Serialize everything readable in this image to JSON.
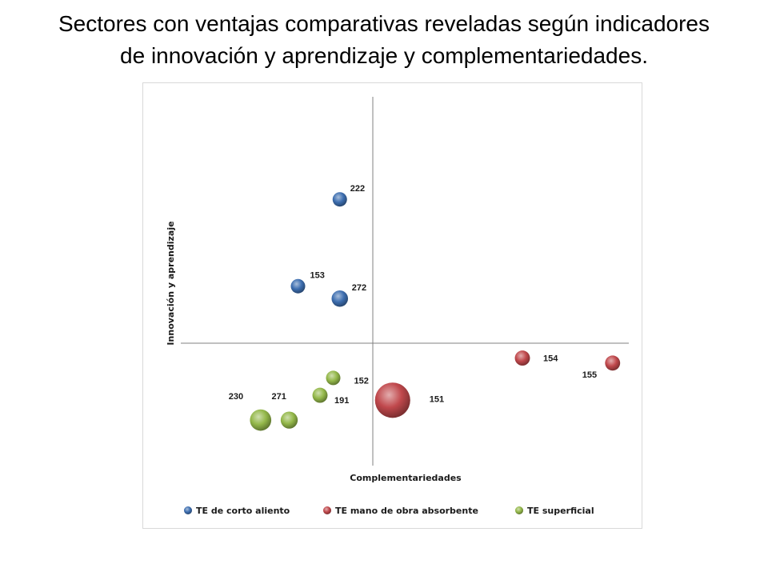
{
  "title": {
    "line1": "Sectores con ventajas comparativas reveladas según indicadores",
    "line2": "de innovación y aprendizaje y complementariedades."
  },
  "chart_data": {
    "type": "bubble",
    "xlabel": "Complementariedades",
    "ylabel": "Innovación y aprendizaje",
    "grid": false,
    "legend_position": "bottom",
    "xlim": [
      -1,
      1
    ],
    "ylim": [
      -1,
      1
    ],
    "series": [
      {
        "name": "TE de corto aliento",
        "color": "#3d6eb0",
        "points": [
          {
            "label": "222",
            "x": -0.15,
            "y": 0.58,
            "size": 1.0
          },
          {
            "label": "153",
            "x": -0.34,
            "y": 0.23,
            "size": 1.0
          },
          {
            "label": "272",
            "x": -0.15,
            "y": 0.18,
            "size": 1.3
          }
        ]
      },
      {
        "name": "TE mano de obra absorbente",
        "color": "#c0484c",
        "points": [
          {
            "label": "154",
            "x": 0.68,
            "y": -0.06,
            "size": 1.1
          },
          {
            "label": "155",
            "x": 1.09,
            "y": -0.08,
            "size": 1.1
          },
          {
            "label": "151",
            "x": 0.09,
            "y": -0.23,
            "size": 6.0
          }
        ]
      },
      {
        "name": "TE superficial",
        "color": "#94b84a",
        "points": [
          {
            "label": "152",
            "x": -0.18,
            "y": -0.14,
            "size": 1.0
          },
          {
            "label": "191",
            "x": -0.24,
            "y": -0.21,
            "size": 1.1
          },
          {
            "label": "230",
            "x": -0.51,
            "y": -0.31,
            "size": 2.2
          },
          {
            "label": "271",
            "x": -0.38,
            "y": -0.31,
            "size": 1.4
          }
        ]
      }
    ]
  }
}
